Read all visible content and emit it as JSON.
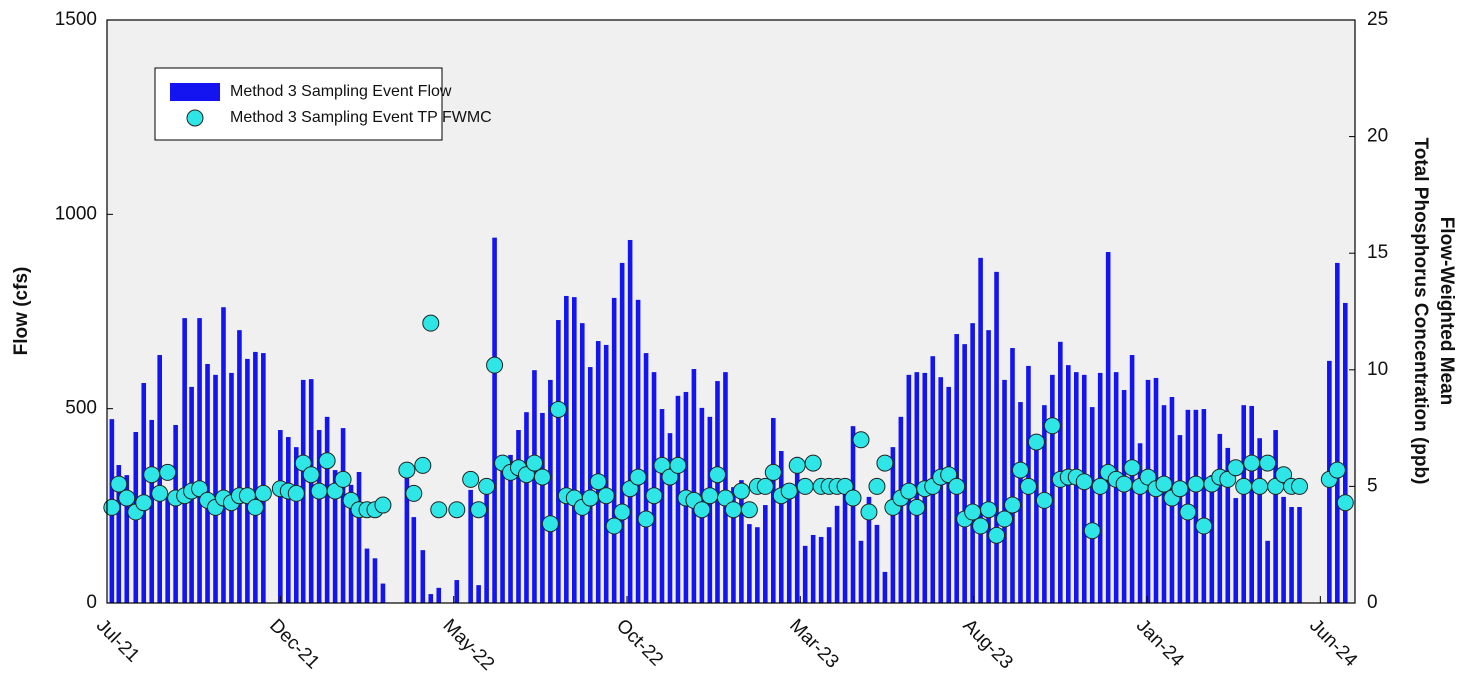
{
  "chart_data": {
    "type": "bar+scatter",
    "ylabel": "Flow (cfs)",
    "y2label": [
      "Flow-Weighted Mean",
      "Total Phosphorus Concentration (ppb)"
    ],
    "legend": "upper left",
    "grid": false,
    "xlim": [
      0,
      36
    ],
    "xticks": [
      {
        "value": 0,
        "label": "Jul-21"
      },
      {
        "value": 5,
        "label": "Dec-21"
      },
      {
        "value": 10,
        "label": "May-22"
      },
      {
        "value": 15,
        "label": "Oct-22"
      },
      {
        "value": 20,
        "label": "Mar-23"
      },
      {
        "value": 25,
        "label": "Aug-23"
      },
      {
        "value": 30,
        "label": "Jan-24"
      },
      {
        "value": 35,
        "label": "Jun-24"
      }
    ],
    "ylim": [
      0,
      1500
    ],
    "yticks": [
      0,
      500,
      1000,
      1500
    ],
    "y2lim": [
      0,
      25
    ],
    "y2ticks": [
      0,
      5,
      10,
      15,
      20,
      25
    ],
    "x": [
      0.14,
      0.34,
      0.57,
      0.83,
      1.06,
      1.29,
      1.52,
      1.75,
      1.98,
      2.24,
      2.44,
      2.67,
      2.9,
      3.13,
      3.36,
      3.59,
      3.82,
      4.05,
      4.28,
      4.51,
      5.0,
      5.23,
      5.46,
      5.66,
      5.89,
      6.12,
      6.35,
      6.58,
      6.81,
      7.04,
      7.27,
      7.5,
      7.73,
      7.96,
      8.65,
      8.85,
      9.11,
      9.34,
      9.57,
      10.09,
      10.49,
      10.72,
      10.95,
      11.18,
      11.41,
      11.64,
      11.87,
      12.1,
      12.33,
      12.56,
      12.79,
      13.02,
      13.25,
      13.48,
      13.71,
      13.94,
      14.17,
      14.4,
      14.63,
      14.86,
      15.09,
      15.32,
      15.55,
      15.78,
      16.01,
      16.24,
      16.47,
      16.7,
      16.93,
      17.16,
      17.39,
      17.61,
      17.84,
      18.07,
      18.3,
      18.53,
      18.76,
      18.99,
      19.22,
      19.45,
      19.68,
      19.91,
      20.14,
      20.37,
      20.6,
      20.83,
      21.06,
      21.29,
      21.52,
      21.75,
      21.98,
      22.21,
      22.44,
      22.67,
      22.9,
      23.13,
      23.36,
      23.59,
      23.82,
      24.05,
      24.28,
      24.51,
      24.74,
      24.97,
      25.2,
      25.43,
      25.66,
      25.89,
      26.12,
      26.35,
      26.58,
      26.81,
      27.04,
      27.27,
      27.5,
      27.73,
      27.96,
      28.19,
      28.42,
      28.65,
      28.88,
      29.11,
      29.34,
      29.57,
      29.8,
      30.03,
      30.26,
      30.49,
      30.72,
      30.95,
      31.18,
      31.41,
      31.64,
      31.87,
      32.1,
      32.33,
      32.56,
      32.79,
      33.02,
      33.25,
      33.48,
      33.71,
      33.94,
      34.17,
      34.4,
      35.26,
      35.49,
      35.72
    ],
    "series": [
      {
        "name": "Method 3 Sampling Event Flow",
        "type": "bar",
        "color": "#1414f0",
        "values": [
          473,
          355,
          329,
          440,
          566,
          471,
          638,
          270,
          458,
          733,
          556,
          733,
          615,
          587,
          761,
          592,
          702,
          628,
          646,
          643,
          445,
          427,
          401,
          574,
          576,
          445,
          479,
          342,
          450,
          304,
          337,
          140,
          115,
          50,
          342,
          221,
          136,
          23,
          39,
          59,
          291,
          46,
          310,
          940,
          368,
          381,
          445,
          491,
          599,
          489,
          574,
          728,
          790,
          787,
          720,
          607,
          674,
          664,
          785,
          875,
          934,
          780,
          643,
          594,
          499,
          437,
          533,
          543,
          602,
          502,
          479,
          571,
          594,
          298,
          316,
          203,
          195,
          252,
          476,
          391,
          296,
          376,
          147,
          175,
          170,
          195,
          250,
          280,
          455,
          160,
          273,
          201,
          80,
          401,
          479,
          587,
          594,
          592,
          635,
          581,
          556,
          692,
          666,
          720,
          888,
          702,
          852,
          574,
          656,
          517,
          610,
          419,
          509,
          587,
          672,
          612,
          594,
          587,
          504,
          592,
          903,
          594,
          548,
          638,
          411,
          574,
          579,
          509,
          530,
          432,
          497,
          497,
          499,
          329,
          435,
          399,
          270,
          509,
          507,
          424,
          160,
          445,
          273,
          247,
          247,
          623,
          875,
          772
        ]
      },
      {
        "name": "Method 3 Sampling Event TP FWMC",
        "type": "scatter",
        "axis": "y2",
        "color": "#2ee6e6",
        "values": [
          4.1,
          5.1,
          4.5,
          3.9,
          4.3,
          5.5,
          4.7,
          5.6,
          4.5,
          4.6,
          4.8,
          4.9,
          4.4,
          4.1,
          4.5,
          4.3,
          4.6,
          4.6,
          4.1,
          4.7,
          4.9,
          4.8,
          4.7,
          6.0,
          5.5,
          4.8,
          6.1,
          4.8,
          5.3,
          4.4,
          4.0,
          4.0,
          4.0,
          4.2,
          5.7,
          4.7,
          5.9,
          12.0,
          4.0,
          4.0,
          5.3,
          4.0,
          5.0,
          10.2,
          6.0,
          5.6,
          5.8,
          5.5,
          6.0,
          5.4,
          3.4,
          8.3,
          4.6,
          4.5,
          4.1,
          4.5,
          5.2,
          4.6,
          3.3,
          3.9,
          4.9,
          5.4,
          3.6,
          4.6,
          5.9,
          5.4,
          5.9,
          4.5,
          4.4,
          4.0,
          4.6,
          5.5,
          4.5,
          4.0,
          4.8,
          4.0,
          5.0,
          5.0,
          5.6,
          4.6,
          4.8,
          5.9,
          5.0,
          6.0,
          5.0,
          5.0,
          5.0,
          5.0,
          4.5,
          7.0,
          3.9,
          5.0,
          6.0,
          4.1,
          4.5,
          4.8,
          4.1,
          4.9,
          5.0,
          5.4,
          5.5,
          5.0,
          3.6,
          3.9,
          3.3,
          4.0,
          2.9,
          3.6,
          4.2,
          5.7,
          5.0,
          6.9,
          4.4,
          7.6,
          5.3,
          5.4,
          5.4,
          5.2,
          3.1,
          5.0,
          5.6,
          5.3,
          5.1,
          5.8,
          5.0,
          5.4,
          4.9,
          5.1,
          4.5,
          4.9,
          3.9,
          5.1,
          3.3,
          5.1,
          5.4,
          5.3,
          5.8,
          5.0,
          6.0,
          5.0,
          6.0,
          5.0,
          5.5,
          5.0,
          5.0,
          5.3,
          5.7,
          4.3
        ]
      }
    ]
  }
}
